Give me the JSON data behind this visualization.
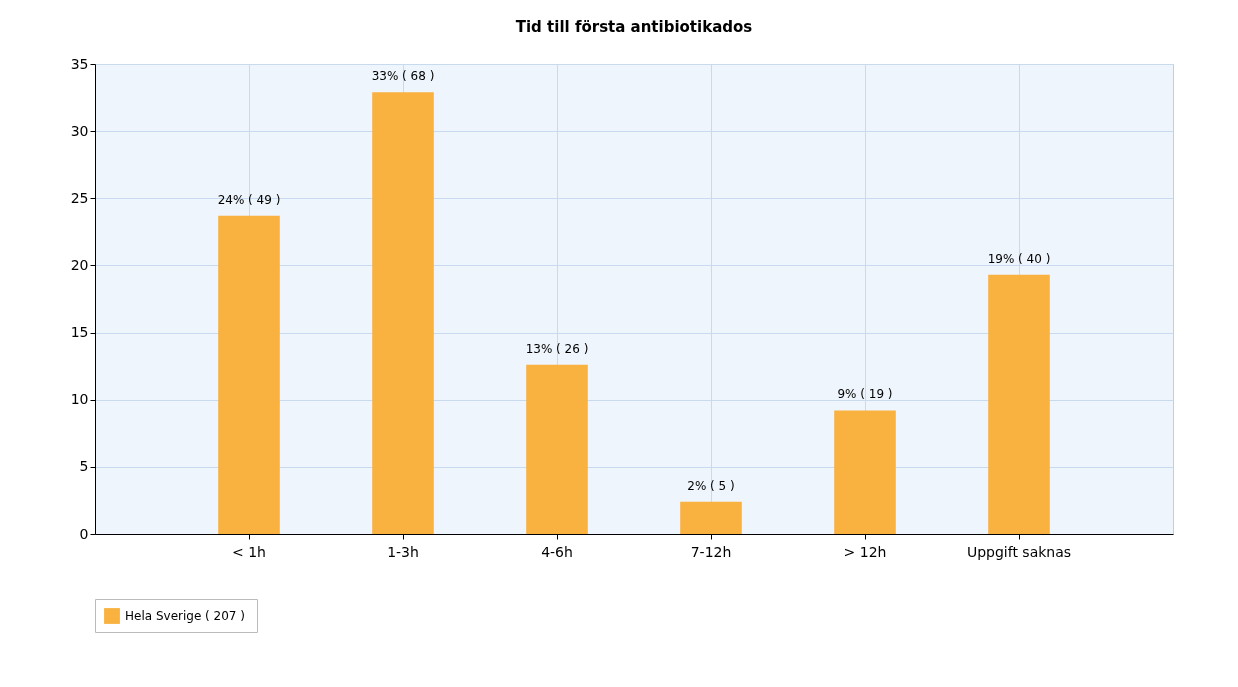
{
  "chart_data": {
    "type": "bar",
    "title": "Tid till första antibiotikados",
    "categories": [
      "< 1h",
      "1-3h",
      "4-6h",
      "7-12h",
      "> 12h",
      "Uppgift saknas"
    ],
    "series": [
      {
        "name": "Hela Sverige  ( 207 )",
        "color": "#f9b13f",
        "values": [
          23.7,
          32.9,
          12.6,
          2.4,
          9.2,
          19.3
        ],
        "value_labels": [
          "24% ( 49 )",
          "33% ( 68 )",
          "13% ( 26 )",
          "2% ( 5 )",
          "9% ( 19 )",
          "19% ( 40 )"
        ]
      }
    ],
    "ylim": [
      0,
      35
    ],
    "yticks": [
      0,
      5,
      10,
      15,
      20,
      25,
      30,
      35
    ],
    "grid": true,
    "legend": "bottom"
  }
}
